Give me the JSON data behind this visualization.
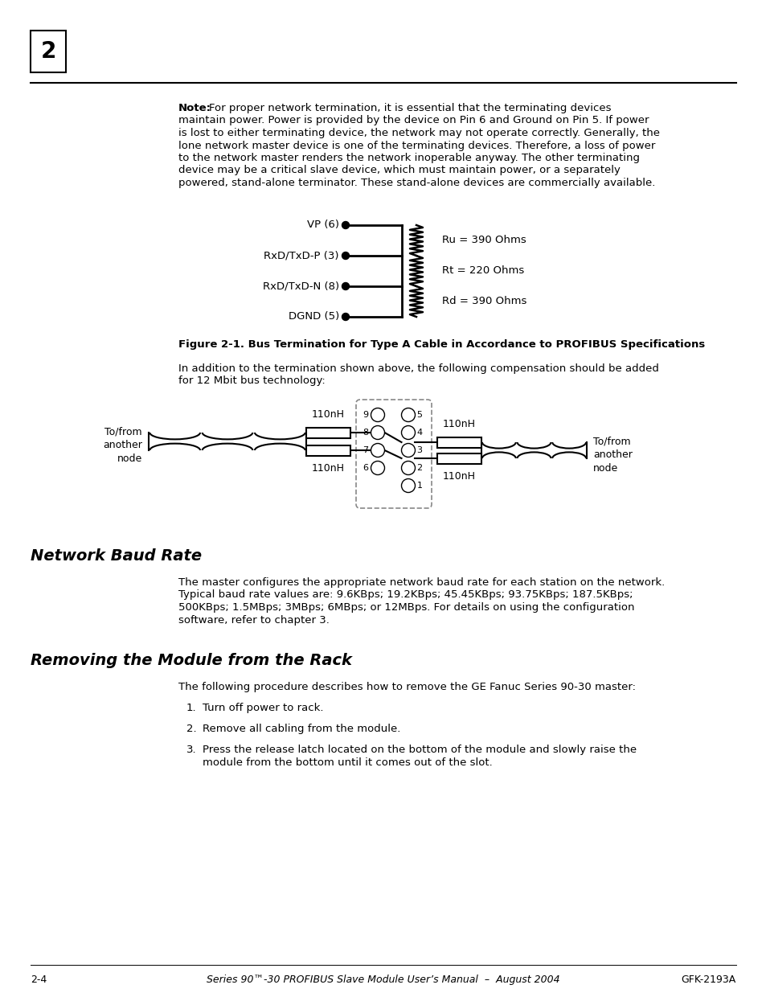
{
  "bg_color": "#ffffff",
  "page_number_box": "2",
  "note_bold": "Note:",
  "note_lines": [
    "   For proper network termination, it is essential that the terminating devices",
    "maintain power. Power is provided by the device on Pin 6 and Ground on Pin 5. If power",
    "is lost to either terminating device, the network may not operate correctly. Generally, the",
    "lone network master device is one of the terminating devices. Therefore, a loss of power",
    "to the network master renders the network inoperable anyway. The other terminating",
    "device may be a critical slave device, which must maintain power, or a separately",
    "powered, stand-alone terminator. These stand-alone devices are commercially available."
  ],
  "figure_caption": "Figure 2-1. Bus Termination for Type A Cable in Accordance to PROFIBUS Specifications",
  "addition_line1": "In addition to the termination shown above, the following compensation should be added",
  "addition_line2": "for 12 Mbit bus technology:",
  "section1_title": "Network Baud Rate",
  "section1_lines": [
    "The master configures the appropriate network baud rate for each station on the network.",
    "Typical baud rate values are: 9.6KBps; 19.2KBps; 45.45KBps; 93.75KBps; 187.5KBps;",
    "500KBps; 1.5MBps; 3MBps; 6MBps; or 12MBps. For details on using the configuration",
    "software, refer to chapter 3."
  ],
  "section2_title": "Removing the Module from the Rack",
  "section2_intro": "The following procedure describes how to remove the GE Fanuc Series 90-30 master:",
  "step1": "Turn off power to rack.",
  "step2": "Remove all cabling from the module.",
  "step3a": "Press the release latch located on the bottom of the module and slowly raise the",
  "step3b": "module from the bottom until it comes out of the slot.",
  "footer_left": "2-4",
  "footer_center": "Series 90™-30 PROFIBUS Slave Module User’s Manual  –  August 2004",
  "footer_right": "GFK-2193A",
  "circuit1_left_labels": [
    "VP (6)",
    "RxD/TxD-P (3)",
    "RxD/TxD-N (8)",
    "DGND (5)"
  ],
  "circuit1_right_labels": [
    "Ru = 390 Ohms",
    "Rt = 220 Ohms",
    "Rd = 390 Ohms"
  ],
  "inductor_label": "110nH",
  "left_node_label": "To/from\nanother\nnode",
  "right_node_label": "To/from\nanother\nnode"
}
